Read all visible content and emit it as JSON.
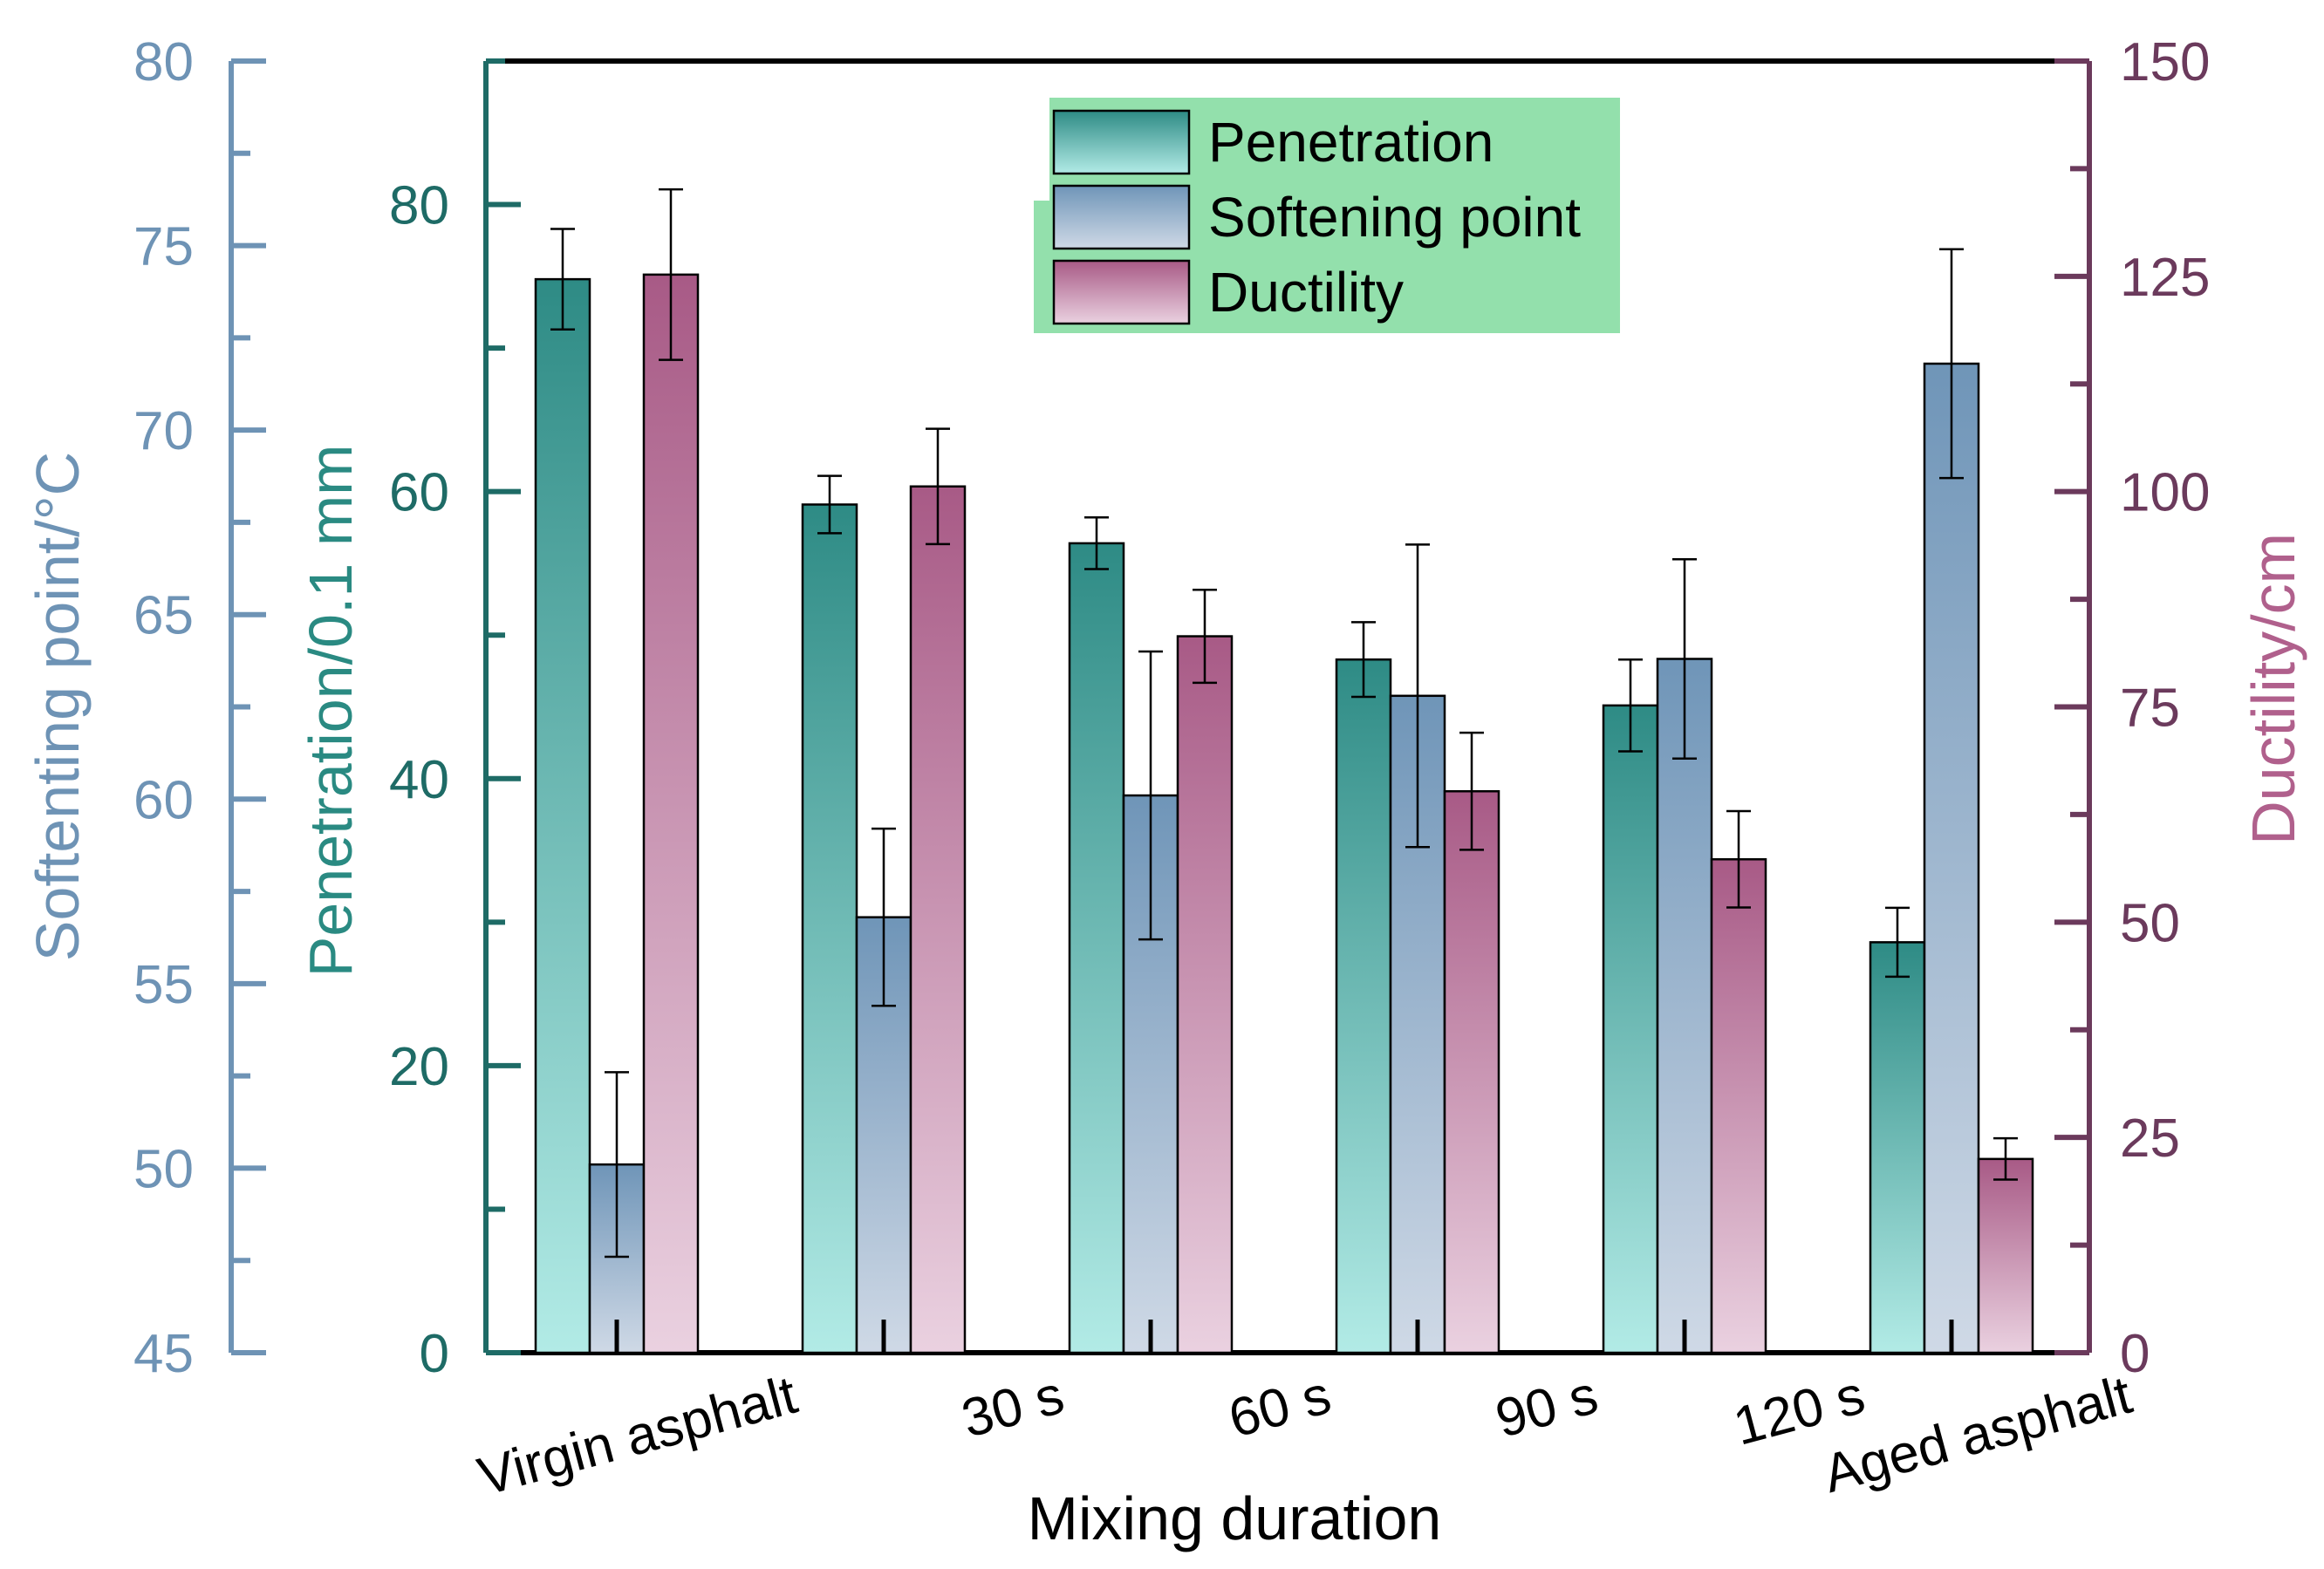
{
  "chart_data": {
    "type": "bar",
    "xlabel": "Mixing duration",
    "categories": [
      "Virgin asphalt",
      "30 s",
      "60 s",
      "90 s",
      "120 s",
      "Aged asphalt"
    ],
    "series": [
      {
        "name": "Penetration",
        "axis": "penetration",
        "values": [
          74.8,
          59.1,
          56.4,
          48.3,
          45.1,
          28.6
        ],
        "errors": [
          3.5,
          2.0,
          1.8,
          2.6,
          3.2,
          2.4
        ],
        "color_top": "#2e8b85",
        "color_bottom": "#b2ebe6"
      },
      {
        "name": "Softening point",
        "axis": "softening",
        "values": [
          50.1,
          56.8,
          60.1,
          62.8,
          63.8,
          71.8
        ],
        "errors": [
          2.5,
          2.4,
          3.9,
          4.1,
          2.7,
          3.1
        ],
        "color_top": "#6f95b8",
        "color_bottom": "#cfd9e6"
      },
      {
        "name": "Ductility",
        "axis": "ductility",
        "values": [
          125.2,
          100.6,
          83.2,
          65.2,
          57.3,
          22.5
        ],
        "errors": [
          9.9,
          6.7,
          5.4,
          6.8,
          5.6,
          2.4
        ],
        "color_top": "#a85a86",
        "color_bottom": "#ead1e0"
      }
    ],
    "axes": {
      "softening": {
        "label": "Softenting point/°C",
        "range": [
          45,
          80
        ],
        "ticks": [
          "45",
          "50",
          "55",
          "60",
          "65",
          "70",
          "75",
          "80"
        ],
        "color": "#6e93b5"
      },
      "penetration": {
        "label": "Penetration/0.1 mm",
        "range": [
          0,
          90
        ],
        "ticks": [
          "0",
          "20",
          "40",
          "60",
          "80"
        ],
        "color": "#1e6b66",
        "label_color": "#2a8a82"
      },
      "ductility": {
        "label": "Ductility/cm",
        "range": [
          0,
          150
        ],
        "ticks": [
          "0",
          "25",
          "50",
          "75",
          "100",
          "125",
          "150"
        ],
        "color": "#6b3a5c",
        "label_color": "#b0608c"
      }
    },
    "legend": {
      "entries": [
        "Penetration",
        "Softening point",
        "Ductility"
      ],
      "position": "top-center",
      "background": "#93e0ac"
    },
    "grid": false
  }
}
